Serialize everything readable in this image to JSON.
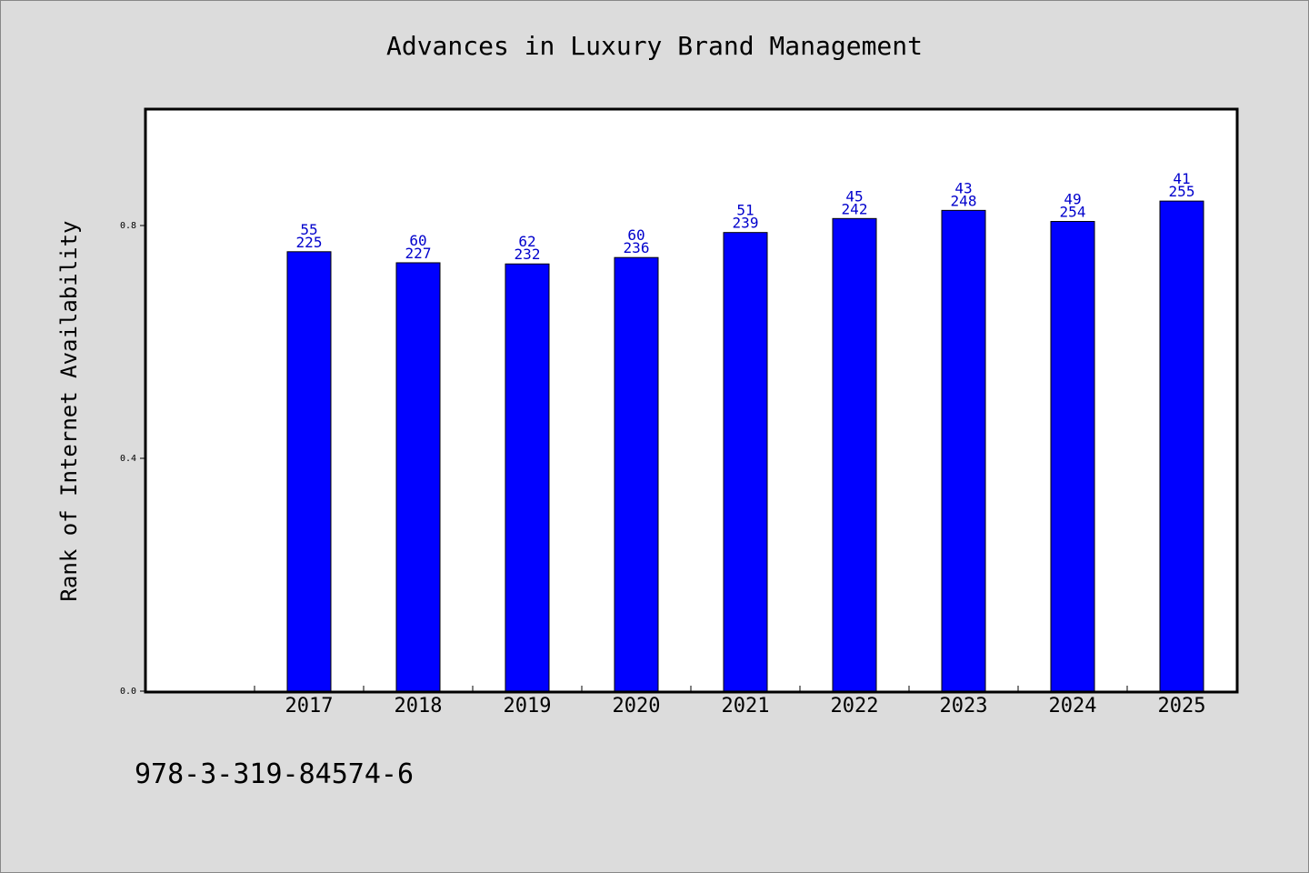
{
  "colors": {
    "background": "#dcdcdc",
    "plot_background": "#ffffff",
    "bar_fill": "#0000ff",
    "bar_stroke": "#000000",
    "label_color": "#0000cc"
  },
  "footer": {
    "isbn": "978-3-319-84574-6"
  },
  "chart_data": {
    "type": "bar",
    "title": "Advances in Luxury Brand Management",
    "ylabel": "Rank of Internet Availability",
    "xlabel": "",
    "ylim": [
      0,
      1.0
    ],
    "yticks": [
      0.0,
      0.4,
      0.8
    ],
    "ytick_labels": [
      "0.0",
      "0.4",
      "0.8"
    ],
    "grid": false,
    "categories": [
      "2017",
      "2018",
      "2019",
      "2020",
      "2021",
      "2022",
      "2023",
      "2024",
      "2025"
    ],
    "values": [
      0.755,
      0.736,
      0.734,
      0.745,
      0.788,
      0.812,
      0.826,
      0.807,
      0.842
    ],
    "labels_top": [
      "55",
      "60",
      "62",
      "60",
      "51",
      "45",
      "43",
      "49",
      "41"
    ],
    "labels_bottom": [
      "225",
      "227",
      "232",
      "236",
      "239",
      "242",
      "248",
      "254",
      "255"
    ]
  }
}
